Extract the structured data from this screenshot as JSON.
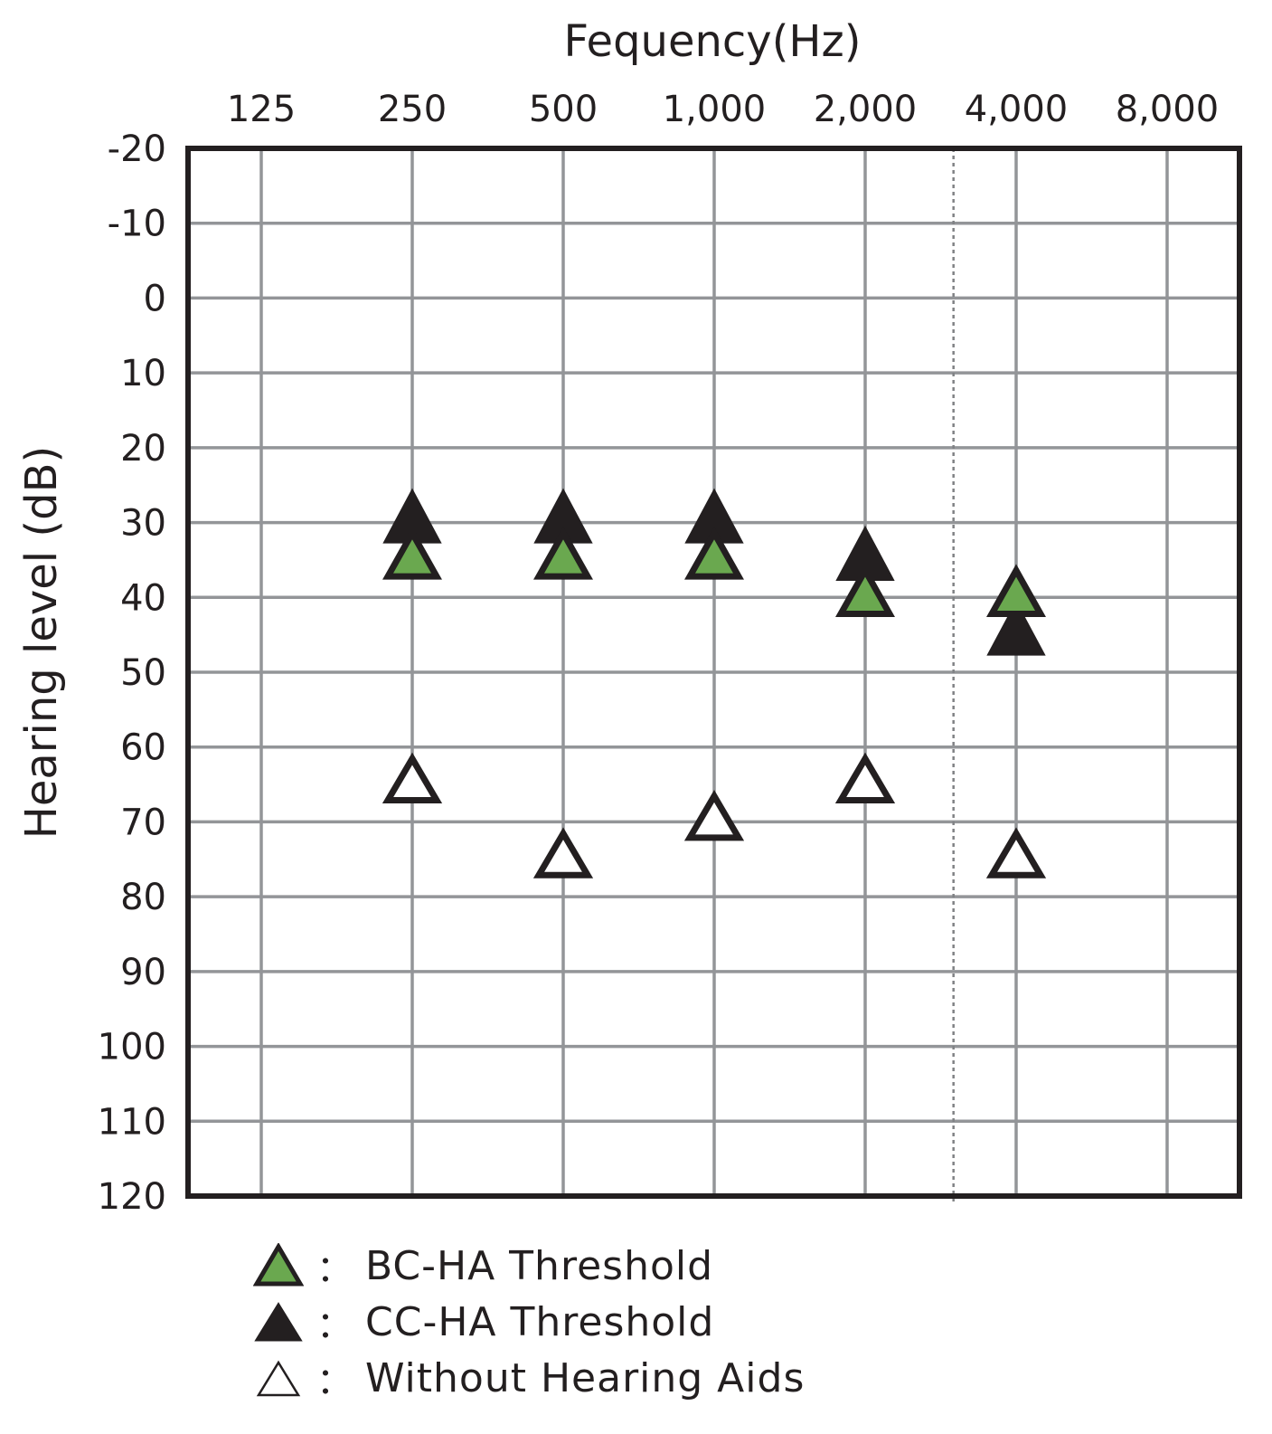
{
  "chart_data": {
    "type": "scatter",
    "title": "",
    "xlabel": "Fequency(Hz)",
    "ylabel": "Hearing level (dB)",
    "x_scale": "log2",
    "x_ticks": [
      "125",
      "250",
      "500",
      "1,000",
      "2,000",
      "4,000",
      "8,000"
    ],
    "x_tick_values": [
      125,
      250,
      500,
      1000,
      2000,
      4000,
      8000
    ],
    "y_ticks": [
      "-20",
      "-10",
      "0",
      "10",
      "20",
      "30",
      "40",
      "50",
      "60",
      "70",
      "80",
      "90",
      "100",
      "110",
      "120"
    ],
    "ylim": [
      -20,
      120
    ],
    "y_inverted": true,
    "grid": true,
    "reference_line_x": 3000,
    "legend_position": "bottom-left",
    "series": [
      {
        "name": "BC-HA Threshold",
        "marker": "triangle",
        "fill": "#6aa84f",
        "stroke": "#231f20",
        "points": [
          {
            "x": 250,
            "y": 35
          },
          {
            "x": 500,
            "y": 35
          },
          {
            "x": 1000,
            "y": 35
          },
          {
            "x": 2000,
            "y": 40
          },
          {
            "x": 4000,
            "y": 40
          }
        ]
      },
      {
        "name": "CC-HA Threshold",
        "marker": "triangle",
        "fill": "#231f20",
        "stroke": "#231f20",
        "points": [
          {
            "x": 250,
            "y": 30
          },
          {
            "x": 500,
            "y": 30
          },
          {
            "x": 1000,
            "y": 30
          },
          {
            "x": 2000,
            "y": 35
          },
          {
            "x": 4000,
            "y": 45
          }
        ]
      },
      {
        "name": "Without Hearing Aids",
        "marker": "triangle",
        "fill": "#ffffff",
        "stroke": "#231f20",
        "points": [
          {
            "x": 250,
            "y": 65
          },
          {
            "x": 500,
            "y": 75
          },
          {
            "x": 1000,
            "y": 70
          },
          {
            "x": 2000,
            "y": 65
          },
          {
            "x": 4000,
            "y": 75
          }
        ]
      }
    ]
  },
  "legend": {
    "separator": "：",
    "items": [
      {
        "label": "BC-HA Threshold",
        "fill": "#6aa84f"
      },
      {
        "label": "CC-HA Threshold",
        "fill": "#231f20"
      },
      {
        "label": "Without Hearing Aids",
        "fill": "#ffffff"
      }
    ]
  }
}
